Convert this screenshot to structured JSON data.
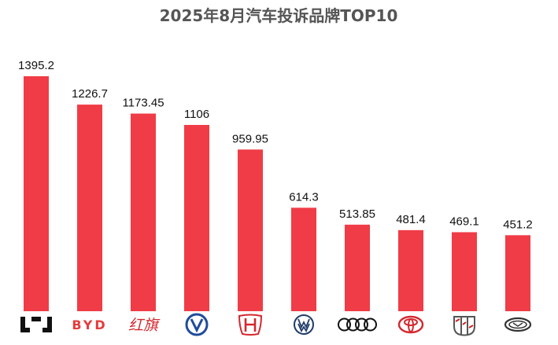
{
  "chart_data": {
    "type": "bar",
    "title": "2025年8月汽车投诉品牌TOP10",
    "xlabel": "",
    "ylabel": "",
    "ylim": [
      0,
      1400
    ],
    "grid": false,
    "legend": "none",
    "bar_color": "#F03C46",
    "categories": [
      {
        "logo": "lynk-co-logo"
      },
      {
        "logo": "byd-logo"
      },
      {
        "logo": "hongqi-logo"
      },
      {
        "logo": "changan-logo"
      },
      {
        "logo": "honda-logo"
      },
      {
        "logo": "volkswagen-logo"
      },
      {
        "logo": "audi-logo"
      },
      {
        "logo": "toyota-logo"
      },
      {
        "logo": "buick-logo"
      },
      {
        "logo": "geely-logo"
      }
    ],
    "values_text": [
      "1395.2",
      "1226.7",
      "1173.45",
      "1106",
      "959.95",
      "614.3",
      "513.85",
      "481.4",
      "469.1",
      "451.2"
    ],
    "values": [
      1395.2,
      1226.7,
      1173.45,
      1106,
      959.95,
      614.3,
      513.85,
      481.4,
      469.1,
      451.2
    ],
    "logo_text": {
      "byd": "BYD",
      "hongqi": "红旗"
    }
  }
}
